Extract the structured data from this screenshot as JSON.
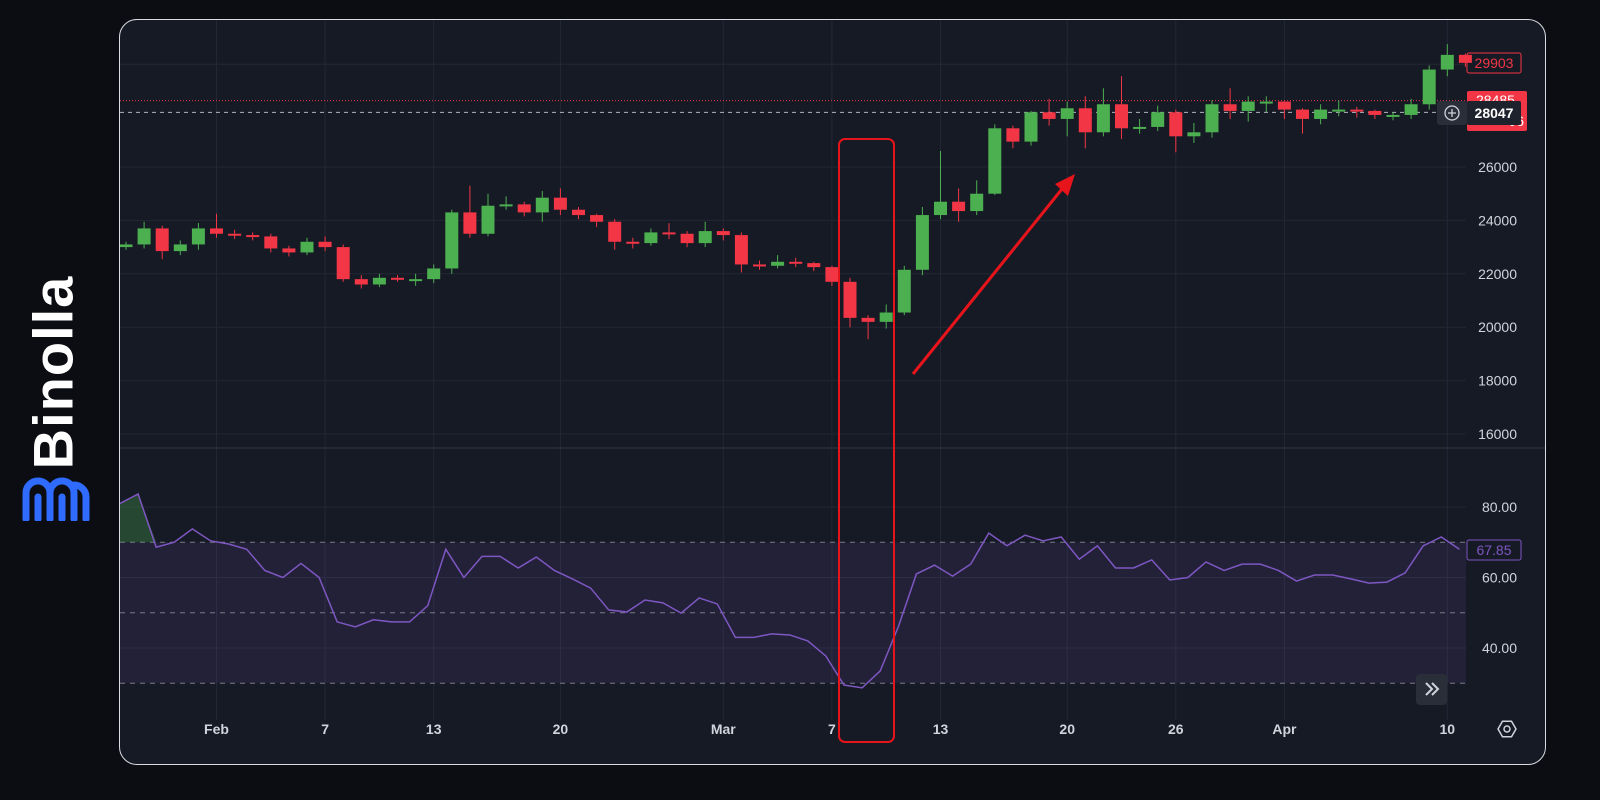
{
  "brand": {
    "name": "Binolla",
    "color": "#2f6bff"
  },
  "colors": {
    "up": "#4caf50",
    "down": "#f23645",
    "rsi": "#7e57c2",
    "annotation": "#e8141b",
    "background": "#161a25"
  },
  "chart_data": [
    {
      "type": "candlestick",
      "title": "",
      "x_ticks": [
        "Feb",
        "7",
        "13",
        "20",
        "Mar",
        "7",
        "13",
        "20",
        "26",
        "Apr",
        "10"
      ],
      "x_range": [
        "Jan 27",
        "Apr 11"
      ],
      "y_ticks": [
        "16000",
        "18000",
        "20000",
        "22000",
        "24000",
        "26000"
      ],
      "ylim": [
        15500,
        30700
      ],
      "grid": true,
      "open": [
        23000,
        23100,
        23700,
        22850,
        23100,
        23700,
        23500,
        23450,
        23400,
        22950,
        22800,
        23200,
        23000,
        21800,
        21600,
        21850,
        21800,
        21800,
        22200,
        24300,
        23500,
        24550,
        24600,
        24300,
        24850,
        24400,
        24200,
        23950,
        23200,
        23150,
        23550,
        23500,
        23150,
        23600,
        23450,
        22350,
        22300,
        22450,
        22400,
        22250,
        21700,
        20350,
        20200,
        20550,
        22150,
        24200,
        24700,
        24350,
        25000,
        27450,
        26950,
        28050,
        27800,
        28200,
        27300,
        28350,
        27450,
        27500,
        28050,
        27150,
        27300,
        28350,
        28100,
        28450,
        28450,
        28150,
        27800,
        28150,
        28150,
        28100,
        27950,
        27950,
        28350,
        29650,
        30200
      ],
      "high": [
        23200,
        23950,
        23800,
        23250,
        23900,
        24250,
        23650,
        23550,
        23500,
        23050,
        23350,
        23400,
        23100,
        21950,
        22000,
        21950,
        22000,
        22350,
        24400,
        25300,
        25000,
        24900,
        24700,
        25100,
        25200,
        24500,
        24250,
        24050,
        23350,
        23700,
        23900,
        23600,
        23950,
        23700,
        23550,
        22500,
        22700,
        22600,
        22450,
        22300,
        21850,
        20450,
        20850,
        22300,
        24500,
        26600,
        25200,
        25500,
        27600,
        27550,
        28100,
        28550,
        28450,
        28650,
        28950,
        29400,
        27800,
        28300,
        28150,
        27650,
        28500,
        28950,
        28650,
        28650,
        28500,
        28200,
        28350,
        28500,
        28250,
        28150,
        28050,
        28550,
        29800,
        30600,
        30250
      ],
      "low": [
        22900,
        22950,
        22550,
        22700,
        22900,
        23350,
        23300,
        23250,
        22800,
        22650,
        22700,
        22850,
        21700,
        21450,
        21500,
        21700,
        21550,
        21650,
        22000,
        23350,
        23400,
        24400,
        24150,
        23950,
        24200,
        24050,
        23750,
        22900,
        22950,
        23050,
        23300,
        23000,
        23000,
        23250,
        22050,
        22150,
        22200,
        22250,
        22100,
        21550,
        20000,
        19550,
        19950,
        20450,
        21950,
        24050,
        23950,
        24200,
        24950,
        26700,
        26800,
        27550,
        27150,
        26700,
        27150,
        27050,
        27250,
        27350,
        26550,
        26900,
        27100,
        27800,
        27700,
        28050,
        27800,
        27250,
        27600,
        27900,
        27850,
        27800,
        27750,
        27800,
        28150,
        29400,
        29750
      ],
      "close": [
        23100,
        23700,
        22850,
        23100,
        23700,
        23500,
        23450,
        23400,
        22950,
        22800,
        23200,
        23000,
        21800,
        21600,
        21850,
        21800,
        21800,
        22200,
        24300,
        23500,
        24550,
        24600,
        24300,
        24850,
        24400,
        24200,
        23950,
        23200,
        23150,
        23550,
        23500,
        23150,
        23600,
        23450,
        22350,
        22300,
        22450,
        22400,
        22250,
        21700,
        20350,
        20200,
        20550,
        22150,
        24200,
        24700,
        24350,
        25000,
        27450,
        26950,
        28050,
        27800,
        28200,
        27300,
        28350,
        27450,
        27500,
        28050,
        27150,
        27300,
        28350,
        28100,
        28450,
        28450,
        28150,
        27800,
        28150,
        28150,
        28100,
        27950,
        27950,
        28350,
        29650,
        30200,
        29900
      ],
      "price_labels": {
        "high_label": "29903",
        "last_price": "28485",
        "crosshair_price": "28047",
        "countdown_fragment": "06"
      },
      "reference_lines": [
        28485,
        28047
      ]
    },
    {
      "type": "line",
      "title": "",
      "y_ticks": [
        "40.00",
        "60.00",
        "80.00"
      ],
      "ylim": [
        25,
        85
      ],
      "band": [
        30,
        70
      ],
      "dashed_levels": [
        70,
        50,
        30
      ],
      "last_value_label": "67.85",
      "values": [
        81,
        83.7,
        68.6,
        70,
        73.8,
        70.4,
        69.5,
        68,
        62,
        60,
        64,
        60,
        47.4,
        46,
        48,
        47.4,
        47.4,
        52,
        68,
        60,
        66,
        66,
        62.7,
        65.8,
        62,
        59.6,
        57,
        50.8,
        50.2,
        53.6,
        52.8,
        49.9,
        54.2,
        52.5,
        43,
        43,
        44,
        43.7,
        42,
        37.7,
        29.5,
        28.7,
        33.5,
        46,
        61,
        63.5,
        60.4,
        63.8,
        72.6,
        69,
        72,
        70.4,
        71.5,
        65.2,
        69,
        62.7,
        62.7,
        65,
        59.3,
        60,
        64.4,
        62,
        63.8,
        63.8,
        62,
        59,
        60.7,
        60.7,
        59.6,
        58.4,
        58.7,
        61.3,
        69,
        71.5,
        68
      ]
    }
  ],
  "controls": {
    "scroll_to_realtime_icon": "double-chevron-right-icon",
    "settings_icon": "hexagon-settings-icon",
    "crosshair_add_icon": "plus-circle-icon"
  }
}
